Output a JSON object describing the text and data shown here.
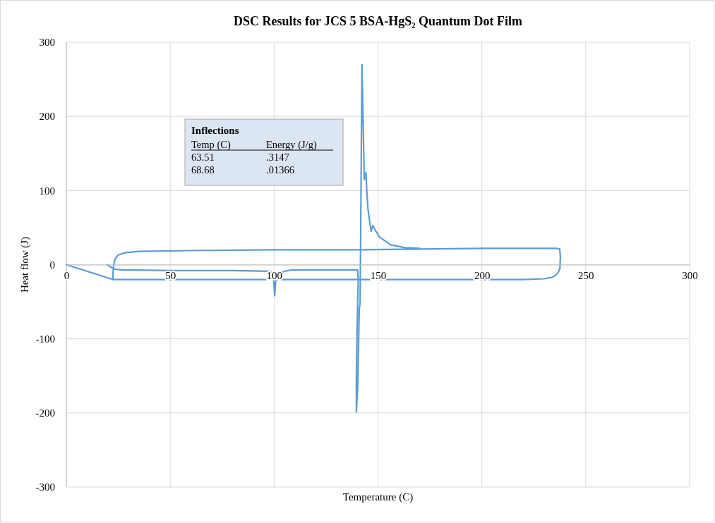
{
  "chart_data": {
    "type": "line",
    "title": "DSC Results for JCS 5 BSA-HgS₂ Quantum Dot Film",
    "xlabel": "Temperature (C)",
    "ylabel": "Heat flow (J)",
    "annotations": [
      "Inflections",
      "Temp (C)",
      "Energy (J/g)",
      "63.51",
      ".3147",
      "68.68",
      ".01366"
    ],
    "xlim": [
      0,
      300
    ],
    "xticks": [
      0,
      50,
      100,
      150,
      200,
      250,
      300
    ],
    "ylim": [
      -300,
      300
    ],
    "yticks": [
      -300,
      -200,
      -100,
      0,
      100,
      200,
      300
    ],
    "grid": true,
    "marker": "none",
    "line_style": "solid",
    "series": [
      {
        "color": "#5b9bd5",
        "x": [
          0,
          22.4,
          22.5,
          22.8,
          23.5,
          25,
          28,
          35,
          60,
          100,
          140,
          170,
          200,
          236,
          237.5,
          237.8,
          237.6,
          236.5,
          234,
          230,
          220,
          150,
          100,
          50,
          30,
          22.5,
          null,
          19.6,
          23,
          26.8,
          50,
          80,
          98.2,
          99.8,
          100.3,
          100.8,
          102,
          105,
          108.4,
          120,
          140.2,
          140.5,
          140,
          139.6,
          139.6,
          140.3,
          141,
          141.4,
          141.5,
          141.7,
          142.3,
          142.8,
          143.4,
          144.2,
          144.6,
          145.2,
          145.8,
          146.7,
          147.5,
          149,
          150.9,
          156,
          162.8,
          170
        ],
        "values": [
          0,
          -20,
          -10,
          0,
          8,
          13,
          16,
          18,
          19,
          20,
          20,
          21,
          22,
          22,
          21,
          10,
          -5,
          -12,
          -17,
          -19,
          -20,
          -20,
          -20,
          -20,
          -20,
          -20,
          null,
          0,
          -6,
          -7,
          -8,
          -8,
          -9,
          -20,
          -42,
          -20,
          -12,
          -9,
          -7,
          -7,
          -7,
          -20,
          -80,
          -150,
          -199,
          -160,
          -60,
          -52,
          -20,
          50,
          270,
          200,
          115,
          124,
          100,
          75,
          62,
          45,
          53,
          45,
          37,
          27,
          23,
          22
        ]
      }
    ]
  }
}
